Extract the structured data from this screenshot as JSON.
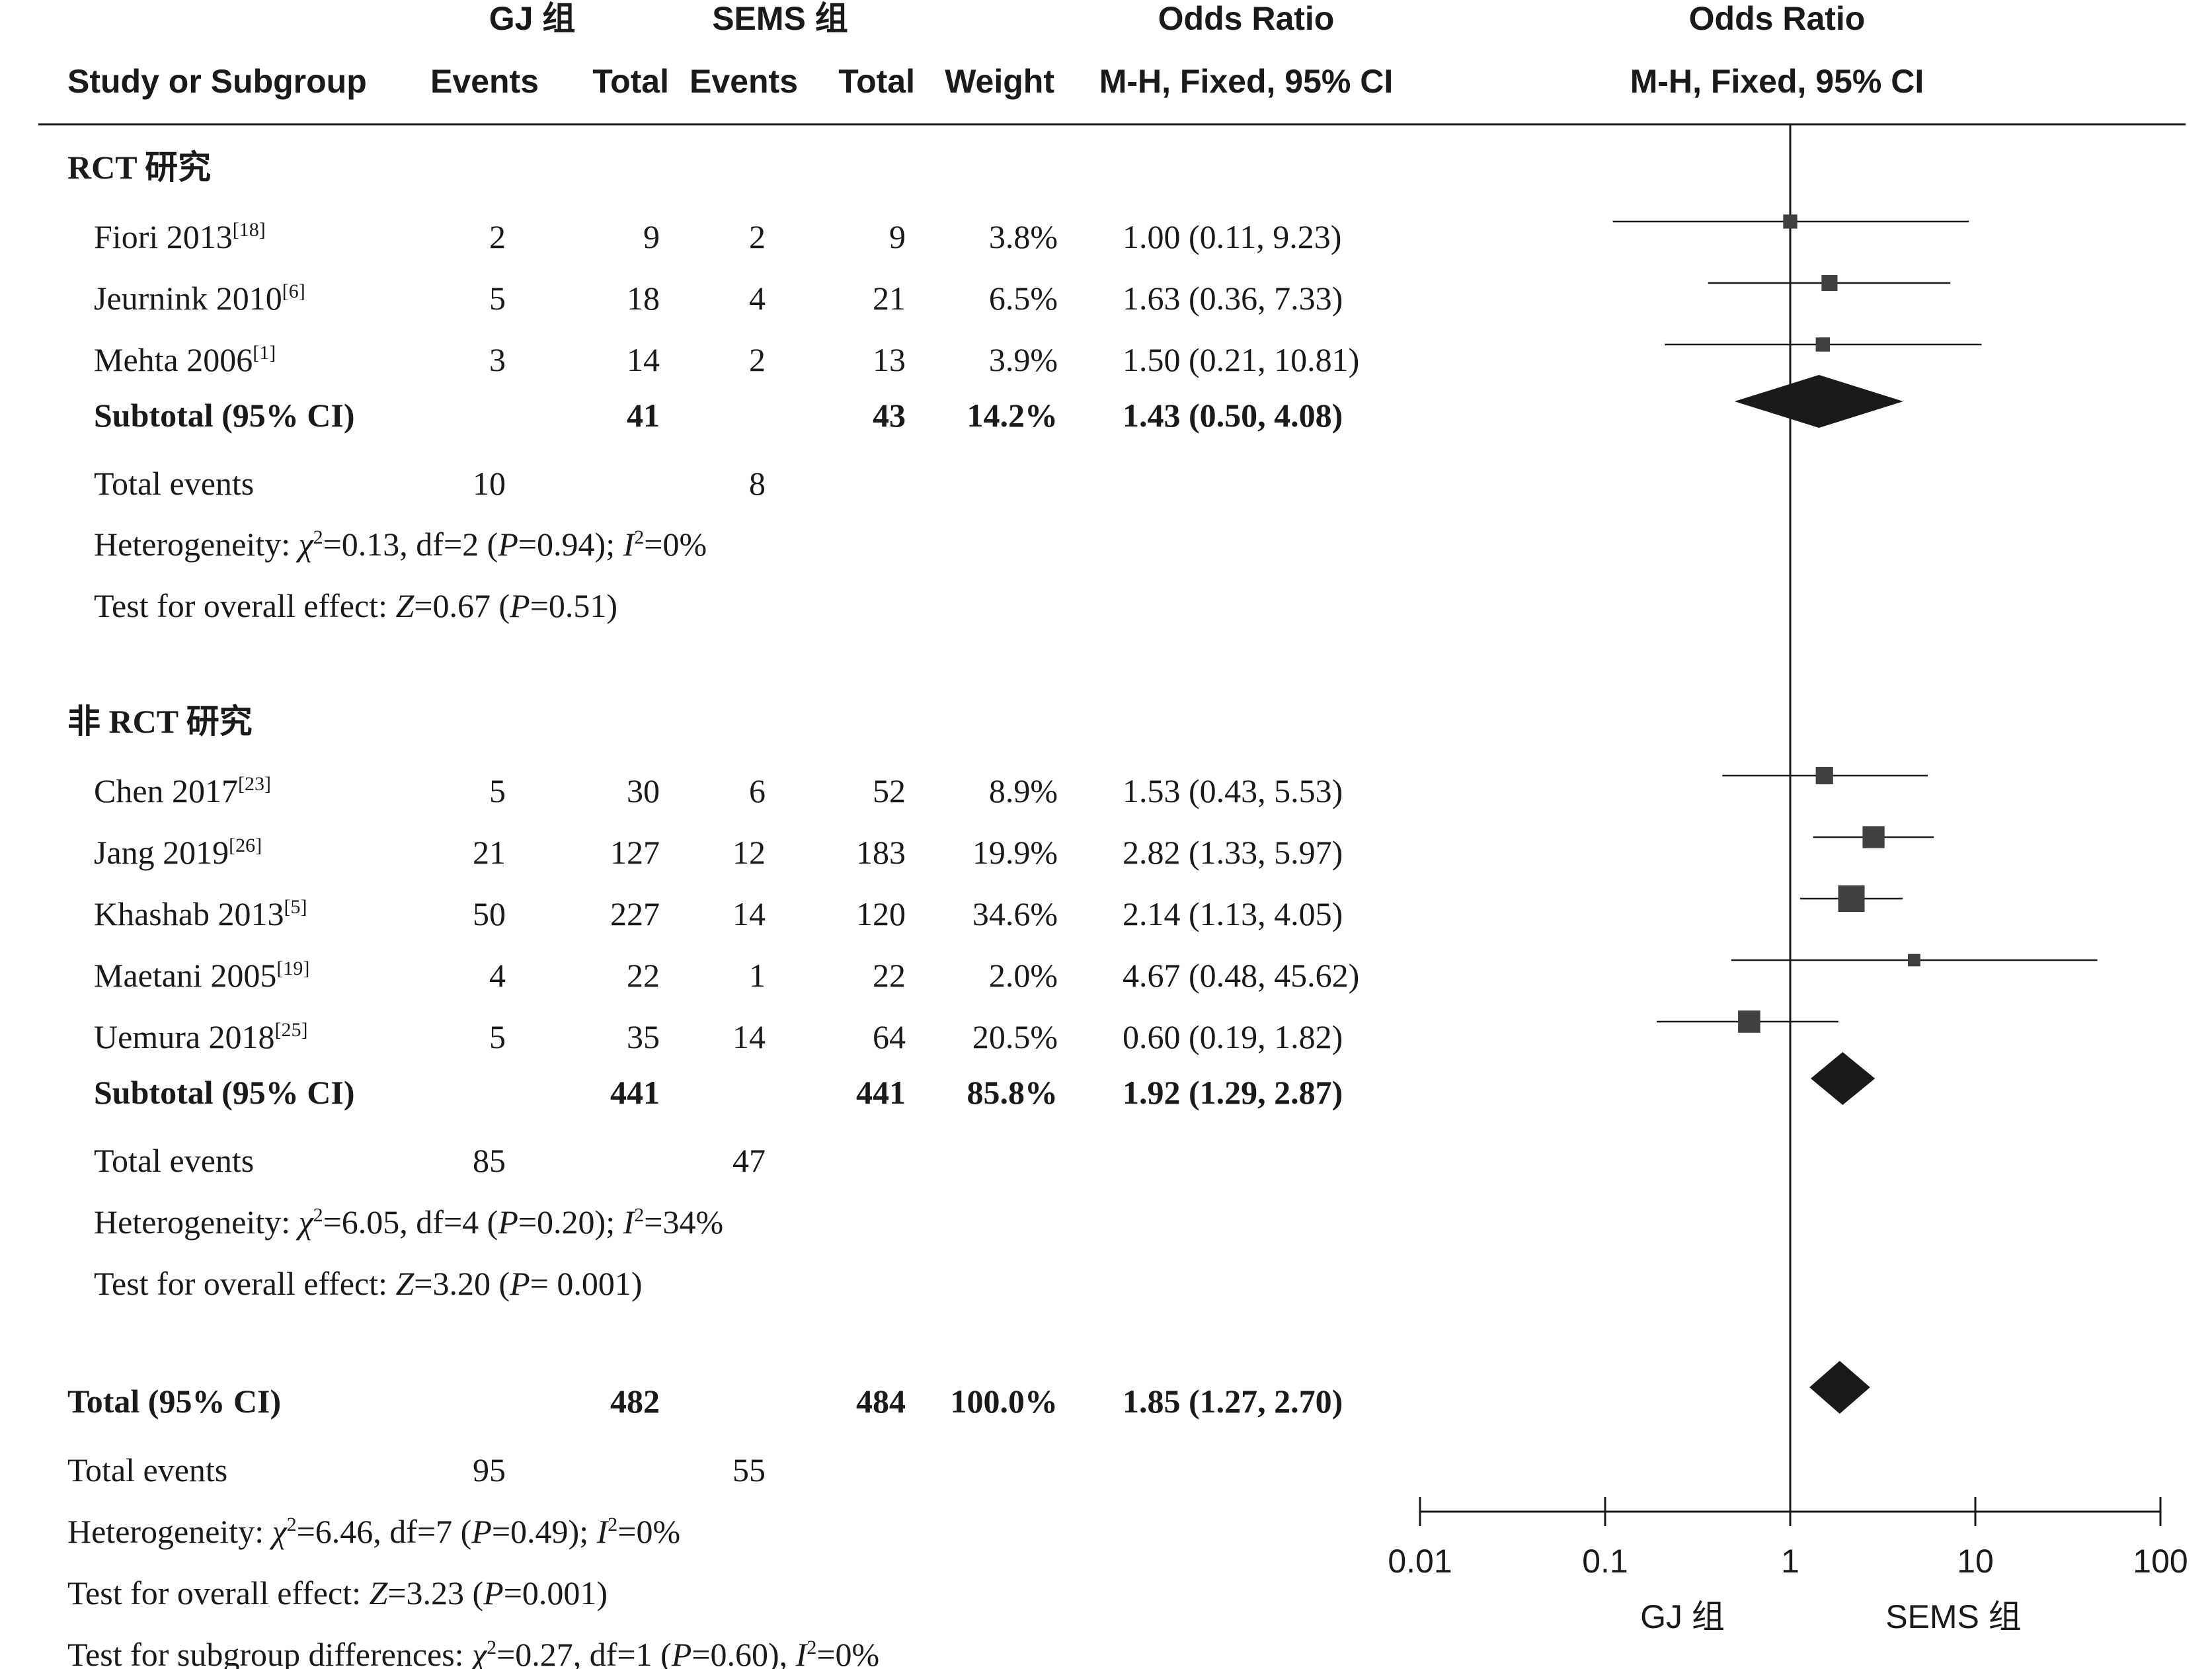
{
  "header": {
    "group1": "GJ 组",
    "group2": "SEMS 组",
    "odds_ratio_col": "Odds Ratio",
    "odds_ratio_plot": "Odds Ratio",
    "study": "Study or Subgroup",
    "events1": "Events",
    "total1": "Total",
    "events2": "Events",
    "total2": "Total",
    "weight": "Weight",
    "method_col": "M-H, Fixed, 95% CI",
    "method_plot": "M-H, Fixed, 95% CI"
  },
  "subgroups": [
    {
      "title": "RCT 研究",
      "studies": [
        {
          "name": "Fiori 2013",
          "ref": "[18]",
          "e1": "2",
          "t1": "9",
          "e2": "2",
          "t2": "9",
          "weight": "3.8%",
          "ci": "1.00 (0.11, 9.23)"
        },
        {
          "name": "Jeurnink 2010",
          "ref": "[6]",
          "e1": "5",
          "t1": "18",
          "e2": "4",
          "t2": "21",
          "weight": "6.5%",
          "ci": "1.63 (0.36, 7.33)"
        },
        {
          "name": "Mehta 2006",
          "ref": "[1]",
          "e1": "3",
          "t1": "14",
          "e2": "2",
          "t2": "13",
          "weight": "3.9%",
          "ci": "1.50 (0.21, 10.81)"
        }
      ],
      "subtotal": {
        "label": "Subtotal (95% CI)",
        "t1": "41",
        "t2": "43",
        "weight": "14.2%",
        "ci": "1.43 (0.50, 4.08)"
      },
      "total_events": {
        "label": "Total events",
        "e1": "10",
        "e2": "8"
      },
      "heterogeneity": {
        "prefix": "Heterogeneity: ",
        "chi": "χ",
        "chi_rest": "=0.13, df=2 (",
        "p": "P",
        "p_rest": "=0.94); ",
        "i": "I",
        "i_rest": "=0%"
      },
      "overall": {
        "prefix": "Test for overall effect: ",
        "z": "Z",
        "z_rest": "=0.67 (",
        "p": "P",
        "p_rest": "=0.51)"
      }
    },
    {
      "title": "非 RCT 研究",
      "studies": [
        {
          "name": "Chen 2017",
          "ref": "[23]",
          "e1": "5",
          "t1": "30",
          "e2": "6",
          "t2": "52",
          "weight": "8.9%",
          "ci": "1.53 (0.43, 5.53)"
        },
        {
          "name": "Jang 2019",
          "ref": "[26]",
          "e1": "21",
          "t1": "127",
          "e2": "12",
          "t2": "183",
          "weight": "19.9%",
          "ci": "2.82 (1.33, 5.97)"
        },
        {
          "name": "Khashab 2013",
          "ref": "[5]",
          "e1": "50",
          "t1": "227",
          "e2": "14",
          "t2": "120",
          "weight": "34.6%",
          "ci": "2.14 (1.13, 4.05)"
        },
        {
          "name": "Maetani 2005",
          "ref": "[19]",
          "e1": "4",
          "t1": "22",
          "e2": "1",
          "t2": "22",
          "weight": "2.0%",
          "ci": "4.67 (0.48, 45.62)"
        },
        {
          "name": "Uemura 2018",
          "ref": "[25]",
          "e1": "5",
          "t1": "35",
          "e2": "14",
          "t2": "64",
          "weight": "20.5%",
          "ci": "0.60 (0.19, 1.82)"
        }
      ],
      "subtotal": {
        "label": "Subtotal (95% CI)",
        "t1": "441",
        "t2": "441",
        "weight": "85.8%",
        "ci": "1.92 (1.29, 2.87)"
      },
      "total_events": {
        "label": "Total events",
        "e1": "85",
        "e2": "47"
      },
      "heterogeneity": {
        "prefix": "Heterogeneity: ",
        "chi": "χ",
        "chi_rest": "=6.05, df=4 (",
        "p": "P",
        "p_rest": "=0.20); ",
        "i": "I",
        "i_rest": "=34%"
      },
      "overall": {
        "prefix": "Test for overall effect: ",
        "z": "Z",
        "z_rest": "=3.20 (",
        "p": "P",
        "p_rest": "= 0.001)"
      }
    }
  ],
  "total": {
    "label": "Total (95% CI)",
    "t1": "482",
    "t2": "484",
    "weight": "100.0%",
    "ci": "1.85 (1.27, 2.70)"
  },
  "total_events": {
    "label": "Total events",
    "e1": "95",
    "e2": "55"
  },
  "total_heterogeneity": {
    "prefix": "Heterogeneity: ",
    "chi": "χ",
    "chi_rest": "=6.46, df=7 (",
    "p": "P",
    "p_rest": "=0.49); ",
    "i": "I",
    "i_rest": "=0%"
  },
  "total_overall": {
    "prefix": "Test for overall effect: ",
    "z": "Z",
    "z_rest": "=3.23 (",
    "p": "P",
    "p_rest": "=0.001)"
  },
  "subgroup_diff": {
    "prefix": "Test for subgroup differences: ",
    "chi": "χ",
    "chi_rest": "=0.27, df=1 (",
    "p": "P",
    "p_rest": "=0.60), ",
    "i": "I",
    "i_rest": "=0%"
  },
  "chart_data": {
    "type": "forest",
    "x_scale": "log",
    "xlim": [
      0.01,
      100
    ],
    "ticks": [
      0.01,
      0.1,
      1,
      10,
      100
    ],
    "tick_labels": [
      "0.01",
      "0.1",
      "1",
      "10",
      "100"
    ],
    "reference_line": 1,
    "favours_left": "GJ 组",
    "favours_right": "SEMS 组",
    "studies": [
      {
        "name": "Fiori 2013",
        "or": 1.0,
        "lo": 0.11,
        "hi": 9.23,
        "weight": 3.8
      },
      {
        "name": "Jeurnink 2010",
        "or": 1.63,
        "lo": 0.36,
        "hi": 7.33,
        "weight": 6.5
      },
      {
        "name": "Mehta 2006",
        "or": 1.5,
        "lo": 0.21,
        "hi": 10.81,
        "weight": 3.9
      },
      {
        "name": "Chen 2017",
        "or": 1.53,
        "lo": 0.43,
        "hi": 5.53,
        "weight": 8.9
      },
      {
        "name": "Jang 2019",
        "or": 2.82,
        "lo": 1.33,
        "hi": 5.97,
        "weight": 19.9
      },
      {
        "name": "Khashab 2013",
        "or": 2.14,
        "lo": 1.13,
        "hi": 4.05,
        "weight": 34.6
      },
      {
        "name": "Maetani 2005",
        "or": 4.67,
        "lo": 0.48,
        "hi": 45.62,
        "weight": 2.0
      },
      {
        "name": "Uemura 2018",
        "or": 0.6,
        "lo": 0.19,
        "hi": 1.82,
        "weight": 20.5
      }
    ],
    "summaries": [
      {
        "name": "RCT subtotal",
        "or": 1.43,
        "lo": 0.5,
        "hi": 4.08
      },
      {
        "name": "非RCT subtotal",
        "or": 1.92,
        "lo": 1.29,
        "hi": 2.87
      },
      {
        "name": "Total",
        "or": 1.85,
        "lo": 1.27,
        "hi": 2.7
      }
    ],
    "colors": {
      "marker": "#404040",
      "diamond": "#1a1a1a",
      "line": "#1a1a1a"
    }
  }
}
